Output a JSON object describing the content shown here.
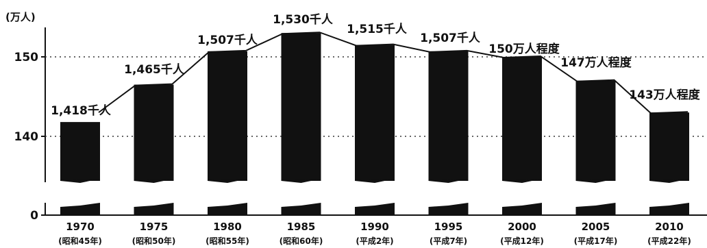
{
  "chart_data": {
    "type": "bar",
    "unit_label": "(万人)",
    "categories": [
      "1970",
      "1975",
      "1980",
      "1985",
      "1990",
      "1995",
      "2000",
      "2005",
      "2010"
    ],
    "era_labels": [
      "(昭和45年)",
      "(昭和50年)",
      "(昭和55年)",
      "(昭和60年)",
      "(平成2年)",
      "(平成7年)",
      "(平成12年)",
      "(平成17年)",
      "(平成22年)"
    ],
    "values": [
      141.8,
      146.5,
      150.7,
      153.0,
      151.5,
      150.7,
      150,
      147,
      143
    ],
    "value_labels": [
      "1,418千人",
      "1,465千人",
      "1,507千人",
      "1,530千人",
      "1,515千人",
      "1,507千人",
      "150万人程度",
      "147万人程度",
      "143万人程度"
    ],
    "y_ticks": [
      "0",
      "140",
      "150"
    ],
    "ylim": [
      0,
      155
    ],
    "axis_break": true,
    "grid": "dashed at 140 and 150",
    "colors": {
      "bar": "#111111",
      "line": "#111111",
      "grid": "#333333"
    }
  }
}
